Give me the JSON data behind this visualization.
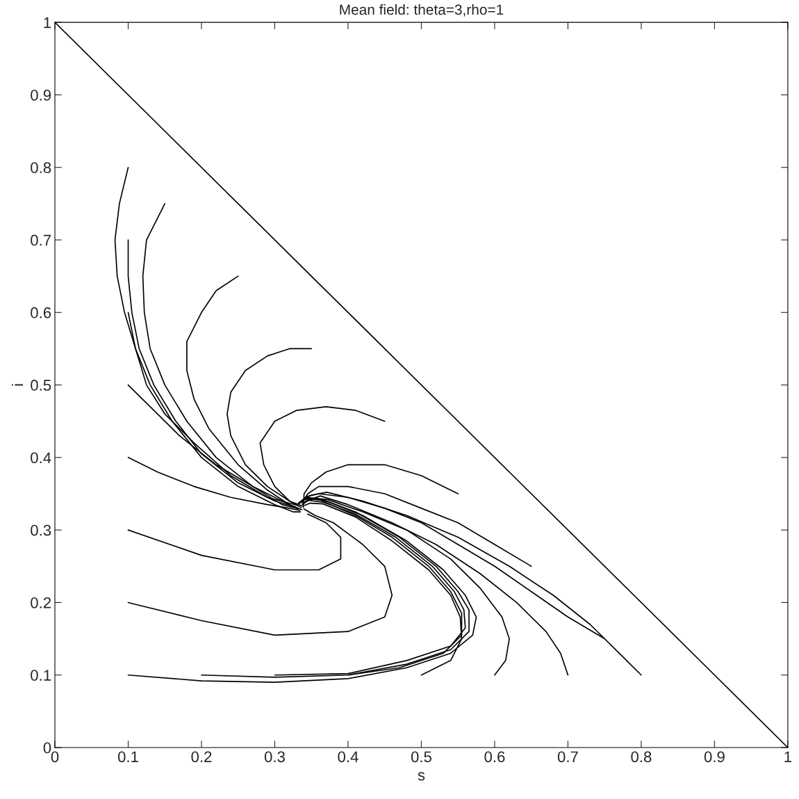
{
  "chart_data": {
    "type": "line",
    "title": "Mean field: theta=3,rho=1",
    "xlabel": "s",
    "ylabel": "i",
    "xlim": [
      0,
      1
    ],
    "ylim": [
      0,
      1
    ],
    "xticks": [
      0,
      0.1,
      0.2,
      0.3,
      0.4,
      0.5,
      0.6,
      0.7,
      0.8,
      0.9,
      1
    ],
    "yticks": [
      0,
      0.1,
      0.2,
      0.3,
      0.4,
      0.5,
      0.6,
      0.7,
      0.8,
      0.9,
      1
    ],
    "grid": false,
    "marker": "none",
    "line_style": "solid",
    "series": [
      {
        "color": "#000000",
        "x": [
          0,
          1
        ],
        "values": [
          1,
          0
        ]
      },
      {
        "color": "#000000",
        "x": [
          0.1,
          0.088,
          0.082,
          0.085,
          0.095,
          0.11,
          0.13,
          0.16,
          0.2,
          0.25,
          0.3,
          0.325,
          0.335
        ],
        "values": [
          0.8,
          0.75,
          0.7,
          0.65,
          0.6,
          0.55,
          0.5,
          0.45,
          0.4,
          0.36,
          0.335,
          0.325,
          0.325
        ]
      },
      {
        "color": "#000000",
        "x": [
          0.15,
          0.125,
          0.12,
          0.122,
          0.13,
          0.15,
          0.18,
          0.22,
          0.27,
          0.31,
          0.33
        ],
        "values": [
          0.75,
          0.7,
          0.65,
          0.6,
          0.55,
          0.5,
          0.45,
          0.4,
          0.36,
          0.335,
          0.33
        ]
      },
      {
        "color": "#000000",
        "x": [
          0.1,
          0.1,
          0.105,
          0.115,
          0.135,
          0.165,
          0.2,
          0.25,
          0.3,
          0.328
        ],
        "values": [
          0.7,
          0.65,
          0.6,
          0.55,
          0.5,
          0.45,
          0.405,
          0.365,
          0.34,
          0.332
        ]
      },
      {
        "color": "#000000",
        "x": [
          0.25,
          0.22,
          0.2,
          0.18,
          0.18,
          0.19,
          0.21,
          0.25,
          0.29,
          0.32,
          0.337
        ],
        "values": [
          0.65,
          0.63,
          0.6,
          0.56,
          0.52,
          0.48,
          0.44,
          0.39,
          0.355,
          0.335,
          0.328
        ]
      },
      {
        "color": "#000000",
        "x": [
          0.1,
          0.11,
          0.125,
          0.15,
          0.19,
          0.24,
          0.29,
          0.331
        ],
        "values": [
          0.6,
          0.55,
          0.5,
          0.46,
          0.42,
          0.375,
          0.345,
          0.334
        ]
      },
      {
        "color": "#000000",
        "x": [
          0.35,
          0.32,
          0.29,
          0.26,
          0.24,
          0.235,
          0.24,
          0.26,
          0.29,
          0.32,
          0.336
        ],
        "values": [
          0.55,
          0.55,
          0.54,
          0.52,
          0.49,
          0.46,
          0.43,
          0.39,
          0.36,
          0.34,
          0.331
        ]
      },
      {
        "color": "#000000",
        "x": [
          0.1,
          0.13,
          0.17,
          0.22,
          0.27,
          0.31,
          0.332
        ],
        "values": [
          0.5,
          0.47,
          0.43,
          0.39,
          0.36,
          0.34,
          0.329
        ]
      },
      {
        "color": "#000000",
        "x": [
          0.45,
          0.41,
          0.37,
          0.33,
          0.3,
          0.28,
          0.285,
          0.3,
          0.32,
          0.338
        ],
        "values": [
          0.45,
          0.465,
          0.47,
          0.465,
          0.45,
          0.42,
          0.39,
          0.36,
          0.34,
          0.333
        ]
      },
      {
        "color": "#000000",
        "x": [
          0.1,
          0.14,
          0.19,
          0.24,
          0.29,
          0.32,
          0.334
        ],
        "values": [
          0.4,
          0.38,
          0.36,
          0.345,
          0.335,
          0.33,
          0.327
        ]
      },
      {
        "color": "#000000",
        "x": [
          0.55,
          0.5,
          0.45,
          0.4,
          0.37,
          0.35,
          0.34,
          0.339
        ],
        "values": [
          0.35,
          0.375,
          0.39,
          0.39,
          0.38,
          0.365,
          0.35,
          0.331
        ]
      },
      {
        "color": "#000000",
        "x": [
          0.1,
          0.2,
          0.3,
          0.36,
          0.39,
          0.39,
          0.37,
          0.345
        ],
        "values": [
          0.3,
          0.265,
          0.245,
          0.245,
          0.26,
          0.29,
          0.31,
          0.322
        ]
      },
      {
        "color": "#000000",
        "x": [
          0.65,
          0.6,
          0.55,
          0.5,
          0.45,
          0.4,
          0.36,
          0.345,
          0.337
        ],
        "values": [
          0.25,
          0.28,
          0.31,
          0.33,
          0.35,
          0.36,
          0.36,
          0.35,
          0.337
        ]
      },
      {
        "color": "#000000",
        "x": [
          0.1,
          0.2,
          0.3,
          0.4,
          0.45,
          0.46,
          0.45,
          0.42,
          0.38,
          0.355,
          0.34
        ],
        "values": [
          0.2,
          0.175,
          0.155,
          0.16,
          0.18,
          0.21,
          0.25,
          0.28,
          0.31,
          0.32,
          0.329
        ]
      },
      {
        "color": "#000000",
        "x": [
          0.75,
          0.7,
          0.65,
          0.6,
          0.55,
          0.5,
          0.45,
          0.4,
          0.36,
          0.343,
          0.333
        ],
        "values": [
          0.15,
          0.18,
          0.215,
          0.25,
          0.28,
          0.31,
          0.33,
          0.345,
          0.35,
          0.346,
          0.336
        ]
      },
      {
        "color": "#000000",
        "x": [
          0.1,
          0.2,
          0.3,
          0.4,
          0.48,
          0.54,
          0.57,
          0.575,
          0.56,
          0.53,
          0.48,
          0.42,
          0.37,
          0.347,
          0.338
        ],
        "values": [
          0.1,
          0.092,
          0.09,
          0.095,
          0.11,
          0.13,
          0.155,
          0.18,
          0.21,
          0.245,
          0.285,
          0.32,
          0.34,
          0.344,
          0.335
        ]
      },
      {
        "color": "#000000",
        "x": [
          0.2,
          0.3,
          0.4,
          0.48,
          0.54,
          0.565,
          0.565,
          0.55,
          0.52,
          0.47,
          0.41,
          0.365,
          0.344,
          0.334
        ],
        "values": [
          0.1,
          0.097,
          0.1,
          0.115,
          0.135,
          0.16,
          0.19,
          0.215,
          0.25,
          0.29,
          0.325,
          0.342,
          0.343,
          0.338
        ]
      },
      {
        "color": "#000000",
        "x": [
          0.3,
          0.4,
          0.48,
          0.54,
          0.56,
          0.558,
          0.545,
          0.515,
          0.465,
          0.41,
          0.367,
          0.346,
          0.339
        ],
        "values": [
          0.1,
          0.102,
          0.12,
          0.14,
          0.165,
          0.19,
          0.215,
          0.25,
          0.29,
          0.322,
          0.338,
          0.341,
          0.336
        ]
      },
      {
        "color": "#000000",
        "x": [
          0.4,
          0.47,
          0.53,
          0.555,
          0.555,
          0.54,
          0.51,
          0.46,
          0.41,
          0.363,
          0.342,
          0.336
        ],
        "values": [
          0.1,
          0.11,
          0.13,
          0.155,
          0.185,
          0.215,
          0.25,
          0.29,
          0.32,
          0.341,
          0.344,
          0.339
        ]
      },
      {
        "color": "#000000",
        "x": [
          0.5,
          0.54,
          0.555,
          0.553,
          0.54,
          0.51,
          0.46,
          0.41,
          0.366,
          0.348,
          0.341
        ],
        "values": [
          0.1,
          0.12,
          0.15,
          0.18,
          0.21,
          0.245,
          0.285,
          0.318,
          0.336,
          0.337,
          0.334
        ]
      },
      {
        "color": "#000000",
        "x": [
          0.6,
          0.615,
          0.62,
          0.61,
          0.58,
          0.54,
          0.48,
          0.42,
          0.372,
          0.343,
          0.332
        ],
        "values": [
          0.1,
          0.12,
          0.15,
          0.18,
          0.22,
          0.26,
          0.3,
          0.325,
          0.342,
          0.345,
          0.337
        ]
      },
      {
        "color": "#000000",
        "x": [
          0.7,
          0.69,
          0.67,
          0.63,
          0.58,
          0.52,
          0.46,
          0.4,
          0.362,
          0.349,
          0.34
        ],
        "values": [
          0.1,
          0.13,
          0.16,
          0.2,
          0.24,
          0.28,
          0.31,
          0.335,
          0.347,
          0.342,
          0.338
        ]
      },
      {
        "color": "#000000",
        "x": [
          0.8,
          0.77,
          0.73,
          0.68,
          0.62,
          0.55,
          0.48,
          0.42,
          0.371,
          0.35,
          0.337
        ],
        "values": [
          0.1,
          0.13,
          0.17,
          0.21,
          0.25,
          0.29,
          0.32,
          0.34,
          0.352,
          0.348,
          0.341
        ]
      }
    ]
  }
}
